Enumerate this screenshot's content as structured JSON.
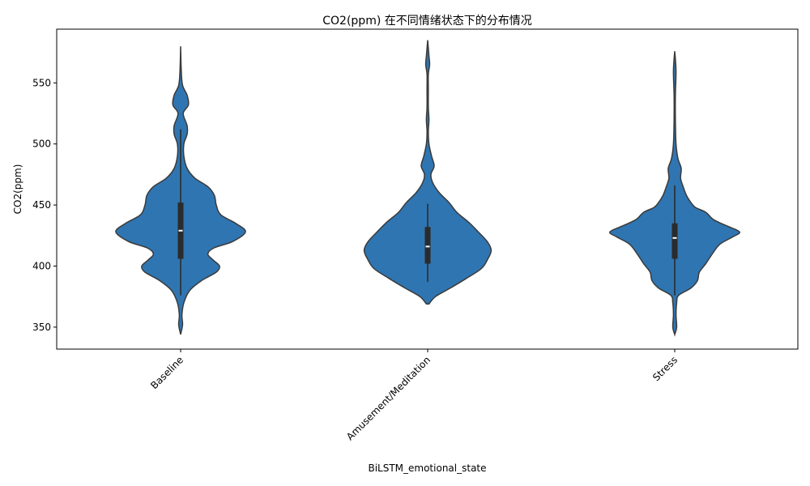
{
  "chart_data": {
    "type": "violin",
    "title": "CO2(ppm) 在不同情绪状态下的分布情况",
    "xlabel": "BiLSTM_emotional_state",
    "ylabel": "CO2(ppm)",
    "ylim": [
      332,
      594
    ],
    "yticks": [
      350,
      400,
      450,
      500,
      550
    ],
    "grid": false,
    "colors": {
      "fill": "#2f75b1",
      "edge": "#3a3a3a",
      "box": "#2b2b2b",
      "median": "#ffffff"
    },
    "categories": [
      "Baseline",
      "Amusement/Meditation",
      "Stress"
    ],
    "violins": [
      {
        "category": "Baseline",
        "min": 344,
        "max": 580,
        "q1": 406,
        "median": 429,
        "q3": 452,
        "whisker_low": 376,
        "whisker_high": 512,
        "density": [
          [
            344,
            0.0
          ],
          [
            352,
            0.03
          ],
          [
            360,
            0.02
          ],
          [
            370,
            0.05
          ],
          [
            380,
            0.14
          ],
          [
            388,
            0.32
          ],
          [
            395,
            0.55
          ],
          [
            400,
            0.6
          ],
          [
            405,
            0.5
          ],
          [
            410,
            0.42
          ],
          [
            415,
            0.52
          ],
          [
            420,
            0.8
          ],
          [
            428,
            1.0
          ],
          [
            435,
            0.85
          ],
          [
            442,
            0.62
          ],
          [
            450,
            0.55
          ],
          [
            458,
            0.52
          ],
          [
            465,
            0.42
          ],
          [
            472,
            0.22
          ],
          [
            480,
            0.1
          ],
          [
            490,
            0.05
          ],
          [
            500,
            0.05
          ],
          [
            508,
            0.1
          ],
          [
            515,
            0.1
          ],
          [
            525,
            0.04
          ],
          [
            532,
            0.12
          ],
          [
            540,
            0.1
          ],
          [
            548,
            0.03
          ],
          [
            560,
            0.01
          ],
          [
            580,
            0.0
          ]
        ]
      },
      {
        "category": "Amusement/Meditation",
        "min": 369,
        "max": 585,
        "q1": 402,
        "median": 416,
        "q3": 432,
        "whisker_low": 387,
        "whisker_high": 451,
        "density": [
          [
            369,
            0.02
          ],
          [
            375,
            0.12
          ],
          [
            382,
            0.35
          ],
          [
            390,
            0.6
          ],
          [
            398,
            0.83
          ],
          [
            406,
            0.93
          ],
          [
            413,
            0.98
          ],
          [
            420,
            0.92
          ],
          [
            428,
            0.78
          ],
          [
            436,
            0.63
          ],
          [
            444,
            0.45
          ],
          [
            452,
            0.33
          ],
          [
            460,
            0.18
          ],
          [
            468,
            0.08
          ],
          [
            475,
            0.05
          ],
          [
            482,
            0.1
          ],
          [
            490,
            0.06
          ],
          [
            500,
            0.02
          ],
          [
            510,
            0.01
          ],
          [
            520,
            0.02
          ],
          [
            530,
            0.01
          ],
          [
            545,
            0.01
          ],
          [
            557,
            0.01
          ],
          [
            565,
            0.03
          ],
          [
            572,
            0.02
          ],
          [
            585,
            0.0
          ]
        ]
      },
      {
        "category": "Stress",
        "min": 344,
        "max": 576,
        "q1": 406,
        "median": 423,
        "q3": 435,
        "whisker_low": 376,
        "whisker_high": 466,
        "density": [
          [
            344,
            0.0
          ],
          [
            350,
            0.03
          ],
          [
            360,
            0.02
          ],
          [
            370,
            0.03
          ],
          [
            376,
            0.06
          ],
          [
            382,
            0.25
          ],
          [
            388,
            0.35
          ],
          [
            395,
            0.38
          ],
          [
            402,
            0.48
          ],
          [
            410,
            0.58
          ],
          [
            418,
            0.7
          ],
          [
            424,
            0.9
          ],
          [
            428,
            1.0
          ],
          [
            433,
            0.8
          ],
          [
            438,
            0.6
          ],
          [
            444,
            0.48
          ],
          [
            448,
            0.32
          ],
          [
            452,
            0.25
          ],
          [
            458,
            0.18
          ],
          [
            465,
            0.13
          ],
          [
            472,
            0.09
          ],
          [
            480,
            0.1
          ],
          [
            488,
            0.05
          ],
          [
            500,
            0.02
          ],
          [
            520,
            0.01
          ],
          [
            540,
            0.01
          ],
          [
            560,
            0.02
          ],
          [
            576,
            0.0
          ]
        ]
      }
    ]
  }
}
